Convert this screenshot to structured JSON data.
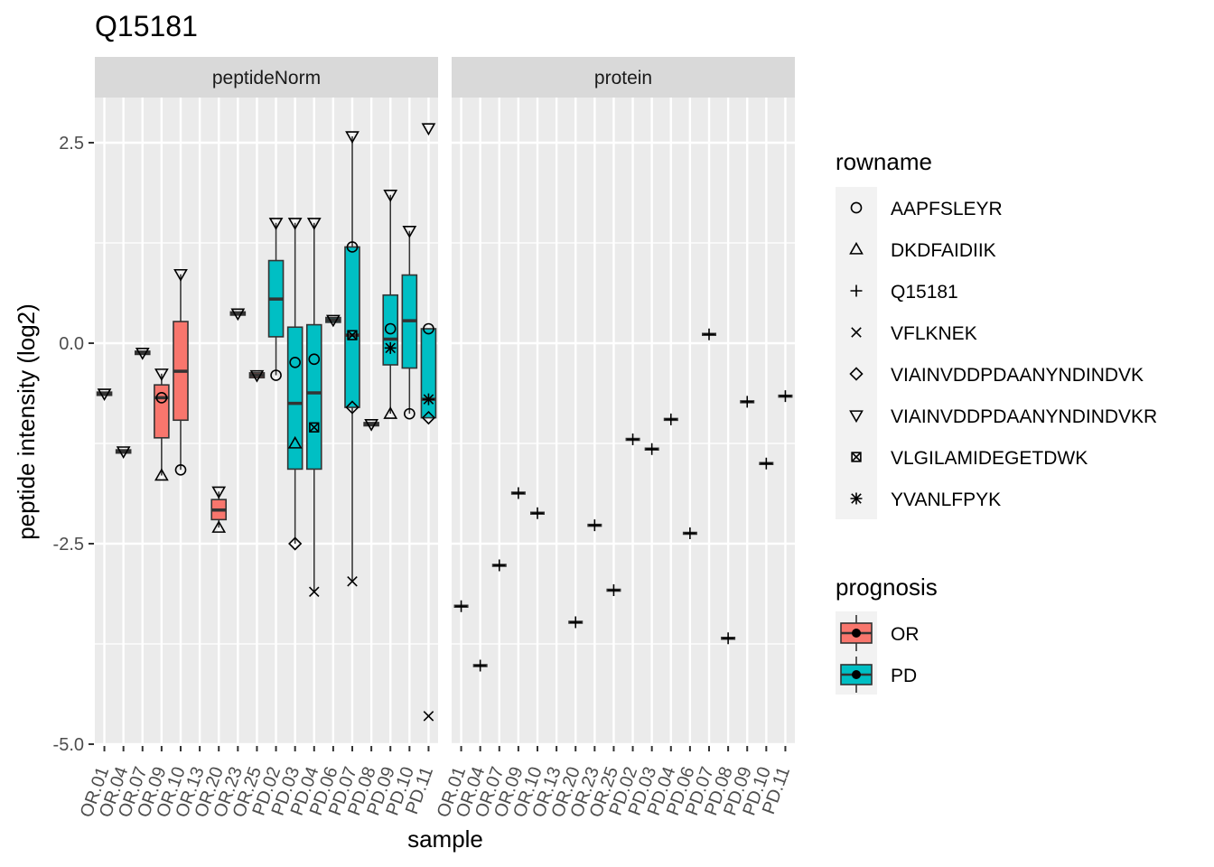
{
  "chart_data": {
    "type": "box",
    "title": "Q15181",
    "xlabel": "sample",
    "ylabel": "peptide intensity (log2)",
    "ylim": [
      -5,
      3
    ],
    "yticks": [
      2.5,
      0.0,
      -2.5,
      -5.0
    ],
    "ytick_labels": [
      "2.5",
      "0.0",
      "-2.5",
      "-5.0"
    ],
    "categories": [
      "OR.01",
      "OR.04",
      "OR.07",
      "OR.09",
      "OR.10",
      "OR.13",
      "OR.20",
      "OR.23",
      "OR.25",
      "PD.02",
      "PD.03",
      "PD.04",
      "PD.06",
      "PD.07",
      "PD.08",
      "PD.09",
      "PD.10",
      "PD.11"
    ],
    "category_prognosis": [
      "OR",
      "OR",
      "OR",
      "OR",
      "OR",
      "OR",
      "OR",
      "OR",
      "OR",
      "PD",
      "PD",
      "PD",
      "PD",
      "PD",
      "PD",
      "PD",
      "PD",
      "PD"
    ],
    "grid": true,
    "facets": [
      {
        "label": "peptideNorm",
        "boxes": [
          {
            "sample": "OR.01",
            "q1": -0.65,
            "median": -0.63,
            "q3": -0.61,
            "low": -0.65,
            "high": -0.61
          },
          {
            "sample": "OR.04",
            "q1": -1.37,
            "median": -1.35,
            "q3": -1.33,
            "low": -1.37,
            "high": -1.33
          },
          {
            "sample": "OR.07",
            "q1": -0.14,
            "median": -0.12,
            "q3": -0.1,
            "low": -0.14,
            "high": -0.1
          },
          {
            "sample": "OR.09",
            "q1": -1.18,
            "median": -0.68,
            "q3": -0.52,
            "low": -1.65,
            "high": -0.38
          },
          {
            "sample": "OR.10",
            "q1": -0.96,
            "median": -0.35,
            "q3": 0.27,
            "low": -1.58,
            "high": 0.86
          },
          {
            "sample": "OR.20",
            "q1": -2.2,
            "median": -2.08,
            "q3": -1.95,
            "low": -2.3,
            "high": -1.85
          },
          {
            "sample": "OR.23",
            "q1": 0.35,
            "median": 0.37,
            "q3": 0.39,
            "low": 0.35,
            "high": 0.39
          },
          {
            "sample": "OR.25",
            "q1": -0.43,
            "median": -0.4,
            "q3": -0.37,
            "low": -0.43,
            "high": -0.37
          },
          {
            "sample": "PD.02",
            "q1": 0.08,
            "median": 0.55,
            "q3": 1.03,
            "low": -0.4,
            "high": 1.5
          },
          {
            "sample": "PD.03",
            "q1": -1.57,
            "median": -0.75,
            "q3": 0.2,
            "low": -2.5,
            "high": 1.5
          },
          {
            "sample": "PD.04",
            "q1": -1.57,
            "median": -0.62,
            "q3": 0.23,
            "low": -3.1,
            "high": 1.5
          },
          {
            "sample": "PD.06",
            "q1": 0.26,
            "median": 0.29,
            "q3": 0.32,
            "low": 0.26,
            "high": 0.32
          },
          {
            "sample": "PD.07",
            "q1": -0.8,
            "median": 0.1,
            "q3": 1.2,
            "low": -2.97,
            "high": 2.58
          },
          {
            "sample": "PD.08",
            "q1": -1.03,
            "median": -1.01,
            "q3": -0.99,
            "low": -1.03,
            "high": -0.99
          },
          {
            "sample": "PD.09",
            "q1": -0.27,
            "median": 0.05,
            "q3": 0.6,
            "low": -0.88,
            "high": 1.85
          },
          {
            "sample": "PD.10",
            "q1": -0.31,
            "median": 0.28,
            "q3": 0.85,
            "low": -0.88,
            "high": 1.4
          },
          {
            "sample": "PD.11",
            "q1": -0.93,
            "median": -0.7,
            "q3": 0.18,
            "low": -0.93,
            "high": 0.18
          }
        ],
        "points": [
          {
            "sample": "OR.01",
            "rowname": "VIAINVDDPDAANYNDINDVKR",
            "y": -0.63
          },
          {
            "sample": "OR.04",
            "rowname": "VIAINVDDPDAANYNDINDVKR",
            "y": -1.35
          },
          {
            "sample": "OR.07",
            "rowname": "VIAINVDDPDAANYNDINDVKR",
            "y": -0.12
          },
          {
            "sample": "OR.09",
            "rowname": "VIAINVDDPDAANYNDINDVKR",
            "y": -0.38
          },
          {
            "sample": "OR.09",
            "rowname": "AAPFSLEYR",
            "y": -0.68
          },
          {
            "sample": "OR.09",
            "rowname": "DKDFAIDIIK",
            "y": -1.65
          },
          {
            "sample": "OR.10",
            "rowname": "VIAINVDDPDAANYNDINDVKR",
            "y": 0.86
          },
          {
            "sample": "OR.10",
            "rowname": "AAPFSLEYR",
            "y": -1.58
          },
          {
            "sample": "OR.20",
            "rowname": "VIAINVDDPDAANYNDINDVKR",
            "y": -1.85
          },
          {
            "sample": "OR.20",
            "rowname": "DKDFAIDIIK",
            "y": -2.3
          },
          {
            "sample": "OR.23",
            "rowname": "VIAINVDDPDAANYNDINDVKR",
            "y": 0.37
          },
          {
            "sample": "OR.25",
            "rowname": "VIAINVDDPDAANYNDINDVKR",
            "y": -0.4
          },
          {
            "sample": "PD.02",
            "rowname": "VIAINVDDPDAANYNDINDVKR",
            "y": 1.5
          },
          {
            "sample": "PD.02",
            "rowname": "AAPFSLEYR",
            "y": -0.4
          },
          {
            "sample": "PD.03",
            "rowname": "VIAINVDDPDAANYNDINDVKR",
            "y": 1.5
          },
          {
            "sample": "PD.03",
            "rowname": "AAPFSLEYR",
            "y": -0.24
          },
          {
            "sample": "PD.03",
            "rowname": "DKDFAIDIIK",
            "y": -1.25
          },
          {
            "sample": "PD.03",
            "rowname": "VIAINVDDPDAANYNDINDVK",
            "y": -2.5
          },
          {
            "sample": "PD.04",
            "rowname": "VIAINVDDPDAANYNDINDVKR",
            "y": 1.5
          },
          {
            "sample": "PD.04",
            "rowname": "AAPFSLEYR",
            "y": -0.2
          },
          {
            "sample": "PD.04",
            "rowname": "VLGILAMIDEGETDWK",
            "y": -1.05
          },
          {
            "sample": "PD.04",
            "rowname": "VFLKNEK",
            "y": -3.1
          },
          {
            "sample": "PD.06",
            "rowname": "VIAINVDDPDAANYNDINDVKR",
            "y": 0.29
          },
          {
            "sample": "PD.07",
            "rowname": "VIAINVDDPDAANYNDINDVKR",
            "y": 2.58
          },
          {
            "sample": "PD.07",
            "rowname": "AAPFSLEYR",
            "y": 1.2
          },
          {
            "sample": "PD.07",
            "rowname": "VLGILAMIDEGETDWK",
            "y": 0.1
          },
          {
            "sample": "PD.07",
            "rowname": "VIAINVDDPDAANYNDINDVK",
            "y": -0.8
          },
          {
            "sample": "PD.07",
            "rowname": "VFLKNEK",
            "y": -2.97
          },
          {
            "sample": "PD.08",
            "rowname": "VIAINVDDPDAANYNDINDVKR",
            "y": -1.01
          },
          {
            "sample": "PD.09",
            "rowname": "VIAINVDDPDAANYNDINDVKR",
            "y": 1.85
          },
          {
            "sample": "PD.09",
            "rowname": "AAPFSLEYR",
            "y": 0.18
          },
          {
            "sample": "PD.09",
            "rowname": "YVANLFPYK",
            "y": -0.06
          },
          {
            "sample": "PD.09",
            "rowname": "DKDFAIDIIK",
            "y": -0.88
          },
          {
            "sample": "PD.10",
            "rowname": "VIAINVDDPDAANYNDINDVKR",
            "y": 1.4
          },
          {
            "sample": "PD.10",
            "rowname": "AAPFSLEYR",
            "y": -0.88
          },
          {
            "sample": "PD.11",
            "rowname": "VIAINVDDPDAANYNDINDVKR",
            "y": 2.68
          },
          {
            "sample": "PD.11",
            "rowname": "AAPFSLEYR",
            "y": 0.18
          },
          {
            "sample": "PD.11",
            "rowname": "YVANLFPYK",
            "y": -0.7
          },
          {
            "sample": "PD.11",
            "rowname": "VIAINVDDPDAANYNDINDVK",
            "y": -0.93
          },
          {
            "sample": "PD.11",
            "rowname": "VFLKNEK",
            "y": -4.65
          }
        ]
      },
      {
        "label": "protein",
        "boxes": [],
        "points": [
          {
            "sample": "OR.01",
            "rowname": "Q15181",
            "y": -3.28
          },
          {
            "sample": "OR.04",
            "rowname": "Q15181",
            "y": -4.02
          },
          {
            "sample": "OR.07",
            "rowname": "Q15181",
            "y": -2.77
          },
          {
            "sample": "OR.09",
            "rowname": "Q15181",
            "y": -1.87
          },
          {
            "sample": "OR.10",
            "rowname": "Q15181",
            "y": -2.12
          },
          {
            "sample": "OR.20",
            "rowname": "Q15181",
            "y": -3.48
          },
          {
            "sample": "OR.23",
            "rowname": "Q15181",
            "y": -2.27
          },
          {
            "sample": "OR.25",
            "rowname": "Q15181",
            "y": -3.08
          },
          {
            "sample": "PD.02",
            "rowname": "Q15181",
            "y": -1.2
          },
          {
            "sample": "PD.03",
            "rowname": "Q15181",
            "y": -1.32
          },
          {
            "sample": "PD.04",
            "rowname": "Q15181",
            "y": -0.95
          },
          {
            "sample": "PD.06",
            "rowname": "Q15181",
            "y": -2.37
          },
          {
            "sample": "PD.07",
            "rowname": "Q15181",
            "y": 0.11
          },
          {
            "sample": "PD.08",
            "rowname": "Q15181",
            "y": -3.68
          },
          {
            "sample": "PD.09",
            "rowname": "Q15181",
            "y": -0.73
          },
          {
            "sample": "PD.10",
            "rowname": "Q15181",
            "y": -1.5
          },
          {
            "sample": "PD.11",
            "rowname": "Q15181",
            "y": -0.66
          }
        ]
      }
    ],
    "legends": [
      {
        "title": "rowname",
        "items": [
          {
            "label": "AAPFSLEYR",
            "shape": "circle"
          },
          {
            "label": "DKDFAIDIIK",
            "shape": "triangle"
          },
          {
            "label": "Q15181",
            "shape": "plus"
          },
          {
            "label": "VFLKNEK",
            "shape": "cross"
          },
          {
            "label": "VIAINVDDPDAANYNDINDVK",
            "shape": "diamond"
          },
          {
            "label": "VIAINVDDPDAANYNDINDVKR",
            "shape": "triangle-down"
          },
          {
            "label": "VLGILAMIDEGETDWK",
            "shape": "square-cross"
          },
          {
            "label": "YVANLFPYK",
            "shape": "asterisk"
          }
        ]
      },
      {
        "title": "prognosis",
        "items": [
          {
            "label": "OR",
            "color": "#F8766D"
          },
          {
            "label": "PD",
            "color": "#00BFC4"
          }
        ]
      }
    ],
    "colors": {
      "OR": "#F8766D",
      "PD": "#00BFC4",
      "panel_bg": "#EBEBEB",
      "strip_bg": "#D9D9D9",
      "grid": "#FFFFFF"
    }
  }
}
